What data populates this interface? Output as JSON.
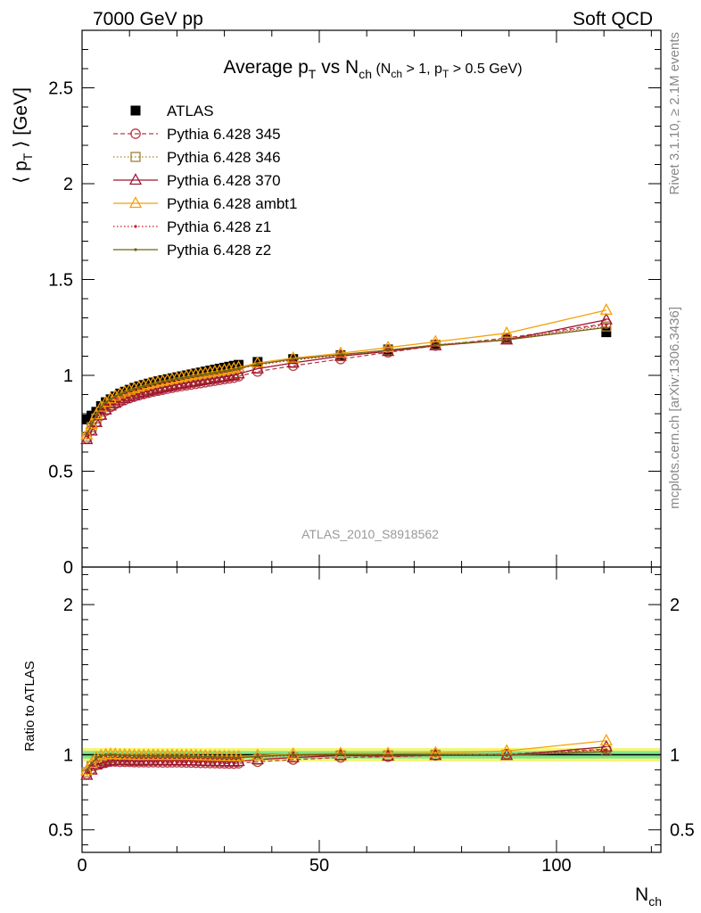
{
  "header": {
    "left_label": "7000 GeV pp",
    "right_label": "Soft QCD"
  },
  "side_labels": {
    "rivet": "Rivet 3.1.10, ≥ 2.1M events",
    "mcplots": "mcplots.cern.ch [arXiv:1306.3436]"
  },
  "watermark": "ATLAS_2010_S8918562",
  "chart_data": [
    {
      "type": "scatter",
      "title": {
        "main": "Average p",
        "main_sub": "T",
        "vs": " vs N",
        "vs_sub": "ch",
        "cut_open": " (N",
        "cut_sub1": "ch",
        "cut_mid1": " > 1, p",
        "cut_sub2": "T",
        "cut_mid2": " > 0.5 GeV)"
      },
      "ylabel": "⟨ p_T ⟩ [GeV]",
      "ylabel_parts": {
        "open": "⟨ p",
        "sub": "T",
        "close": " ⟩ [GeV]"
      },
      "xlim": [
        0,
        122
      ],
      "ylim": [
        0,
        2.8
      ],
      "yticks": [
        {
          "v": 0,
          "label": "0"
        },
        {
          "v": 0.5,
          "label": "0.5"
        },
        {
          "v": 1,
          "label": "1"
        },
        {
          "v": 1.5,
          "label": "1.5"
        },
        {
          "v": 2,
          "label": "2"
        },
        {
          "v": 2.5,
          "label": "2.5"
        }
      ],
      "legend_position": "top-left",
      "x": [
        1,
        2,
        3,
        4,
        5,
        6,
        7,
        8,
        9,
        10,
        11,
        12,
        13,
        14,
        15,
        16,
        17,
        18,
        19,
        20,
        21,
        22,
        23,
        24,
        25,
        26,
        27,
        28,
        29,
        30,
        31,
        32,
        33,
        37,
        44.5,
        54.5,
        64.5,
        74.5,
        89.5,
        110.5
      ],
      "series": [
        {
          "name": "ATLAS",
          "color": "#000000",
          "marker": "filled-square",
          "line": "none",
          "values": [
            0.77,
            0.79,
            0.81,
            0.84,
            0.86,
            0.875,
            0.89,
            0.905,
            0.915,
            0.925,
            0.935,
            0.943,
            0.95,
            0.957,
            0.963,
            0.969,
            0.975,
            0.98,
            0.985,
            0.99,
            0.995,
            1.0,
            1.005,
            1.01,
            1.015,
            1.02,
            1.025,
            1.03,
            1.035,
            1.04,
            1.045,
            1.05,
            1.055,
            1.07,
            1.085,
            1.105,
            1.135,
            1.16,
            1.19,
            1.225
          ]
        },
        {
          "name": "Pythia 6.428 345",
          "color": "#bb3c4b",
          "marker": "open-circle",
          "line": "dashed",
          "values": [
            0.67,
            0.715,
            0.755,
            0.79,
            0.815,
            0.835,
            0.85,
            0.862,
            0.872,
            0.881,
            0.889,
            0.896,
            0.903,
            0.909,
            0.915,
            0.92,
            0.925,
            0.93,
            0.935,
            0.94,
            0.944,
            0.948,
            0.952,
            0.956,
            0.96,
            0.964,
            0.968,
            0.972,
            0.976,
            0.98,
            0.984,
            0.988,
            0.995,
            1.02,
            1.05,
            1.085,
            1.12,
            1.155,
            1.195,
            1.27
          ]
        },
        {
          "name": "Pythia 6.428 346",
          "color": "#a58033",
          "marker": "open-square",
          "line": "dotted",
          "values": [
            0.68,
            0.73,
            0.775,
            0.81,
            0.835,
            0.853,
            0.867,
            0.879,
            0.889,
            0.898,
            0.906,
            0.913,
            0.92,
            0.926,
            0.932,
            0.937,
            0.942,
            0.947,
            0.952,
            0.956,
            0.96,
            0.964,
            0.968,
            0.972,
            0.976,
            0.98,
            0.984,
            0.988,
            0.992,
            0.996,
            1.0,
            1.004,
            1.01,
            1.035,
            1.065,
            1.1,
            1.13,
            1.16,
            1.19,
            1.255
          ]
        },
        {
          "name": "Pythia 6.428 370",
          "color": "#a01432",
          "marker": "open-triangle",
          "line": "solid",
          "values": [
            0.665,
            0.71,
            0.755,
            0.792,
            0.82,
            0.84,
            0.855,
            0.868,
            0.879,
            0.888,
            0.896,
            0.904,
            0.911,
            0.918,
            0.924,
            0.93,
            0.936,
            0.941,
            0.946,
            0.951,
            0.955,
            0.96,
            0.964,
            0.968,
            0.972,
            0.976,
            0.98,
            0.984,
            0.988,
            0.992,
            0.996,
            1.0,
            1.008,
            1.035,
            1.065,
            1.1,
            1.125,
            1.155,
            1.185,
            1.29
          ]
        },
        {
          "name": "Pythia 6.428 ambt1",
          "color": "#f5a00a",
          "marker": "open-triangle",
          "line": "solid",
          "values": [
            0.69,
            0.745,
            0.795,
            0.835,
            0.86,
            0.878,
            0.892,
            0.904,
            0.914,
            0.923,
            0.931,
            0.939,
            0.946,
            0.953,
            0.959,
            0.965,
            0.97,
            0.975,
            0.98,
            0.985,
            0.99,
            0.995,
            1.0,
            1.004,
            1.008,
            1.012,
            1.016,
            1.02,
            1.024,
            1.028,
            1.032,
            1.036,
            1.042,
            1.065,
            1.09,
            1.115,
            1.145,
            1.175,
            1.22,
            1.34
          ]
        },
        {
          "name": "Pythia 6.428 z1",
          "color": "#c81919",
          "marker": "small-dot",
          "line": "dotted",
          "values": [
            0.685,
            0.74,
            0.79,
            0.83,
            0.855,
            0.873,
            0.887,
            0.899,
            0.909,
            0.918,
            0.926,
            0.934,
            0.941,
            0.948,
            0.954,
            0.96,
            0.965,
            0.97,
            0.975,
            0.98,
            0.985,
            0.99,
            0.994,
            0.998,
            1.002,
            1.006,
            1.01,
            1.014,
            1.018,
            1.022,
            1.026,
            1.03,
            1.035,
            1.055,
            1.08,
            1.105,
            1.13,
            1.155,
            1.185,
            1.265
          ]
        },
        {
          "name": "Pythia 6.428 z2",
          "color": "#6e6414",
          "marker": "small-dot",
          "line": "solid",
          "values": [
            0.69,
            0.745,
            0.795,
            0.835,
            0.86,
            0.877,
            0.891,
            0.903,
            0.913,
            0.922,
            0.93,
            0.938,
            0.945,
            0.951,
            0.957,
            0.963,
            0.968,
            0.973,
            0.978,
            0.983,
            0.987,
            0.991,
            0.995,
            0.999,
            1.003,
            1.007,
            1.011,
            1.015,
            1.019,
            1.023,
            1.027,
            1.031,
            1.036,
            1.058,
            1.085,
            1.108,
            1.132,
            1.158,
            1.185,
            1.25
          ]
        }
      ]
    },
    {
      "type": "line",
      "ylabel": "Ratio to ATLAS",
      "xlabel": "N_ch",
      "xlabel_parts": {
        "main": "N",
        "sub": "ch"
      },
      "xlim": [
        0,
        122
      ],
      "ylim": [
        0.35,
        2.25
      ],
      "xticks": [
        {
          "v": 0,
          "label": "0"
        },
        {
          "v": 50,
          "label": "50"
        },
        {
          "v": 100,
          "label": "100"
        }
      ],
      "yticks": [
        {
          "v": 0.5,
          "label": "0.5"
        },
        {
          "v": 1,
          "label": "1"
        },
        {
          "v": 2,
          "label": "2"
        }
      ],
      "bands": [
        {
          "name": "yellow",
          "color": "#f5f57a",
          "lo": 0.955,
          "hi": 1.045
        },
        {
          "name": "green",
          "color": "#7ee68c",
          "lo": 0.975,
          "hi": 1.025
        }
      ],
      "reference": 1.0
    }
  ]
}
